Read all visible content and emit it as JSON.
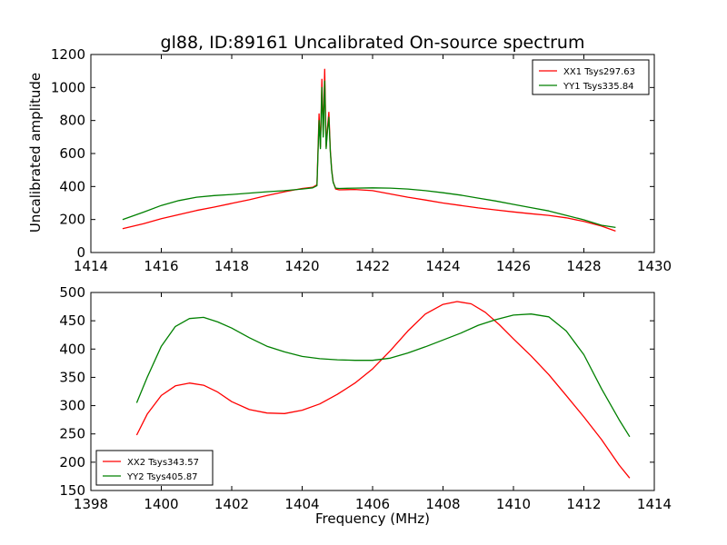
{
  "chart_data": [
    {
      "type": "line",
      "title": "gl88, ID:89161 Uncalibrated On-source spectrum",
      "xlabel": "",
      "ylabel": "Uncalibrated amplitude",
      "xlim": [
        1414,
        1430
      ],
      "ylim": [
        0,
        1200
      ],
      "xticks": [
        "1414",
        "1416",
        "1418",
        "1420",
        "1422",
        "1424",
        "1426",
        "1428",
        "1430"
      ],
      "yticks": [
        "0",
        "200",
        "400",
        "600",
        "800",
        "1000",
        "1200"
      ],
      "grid": false,
      "legend_position": "top-right",
      "series": [
        {
          "name": "XX1 Tsys297.63",
          "color": "#ff0000",
          "x": [
            1414.9,
            1415.5,
            1416,
            1416.5,
            1417,
            1417.5,
            1418,
            1418.5,
            1419,
            1419.5,
            1420,
            1420.3,
            1420.42,
            1420.48,
            1420.52,
            1420.56,
            1420.6,
            1420.64,
            1420.68,
            1420.72,
            1420.76,
            1420.8,
            1420.84,
            1420.88,
            1420.95,
            1421.05,
            1421.5,
            1422,
            1422.5,
            1423,
            1423.5,
            1424,
            1424.5,
            1425,
            1425.5,
            1426,
            1426.5,
            1427,
            1427.5,
            1428,
            1428.5,
            1428.9
          ],
          "y": [
            145,
            175,
            205,
            230,
            255,
            275,
            298,
            320,
            345,
            368,
            388,
            395,
            410,
            840,
            640,
            1050,
            720,
            1110,
            640,
            760,
            850,
            620,
            500,
            430,
            385,
            380,
            382,
            375,
            355,
            335,
            318,
            300,
            285,
            270,
            258,
            246,
            235,
            225,
            210,
            188,
            160,
            130
          ]
        },
        {
          "name": "YY1 Tsys335.84",
          "color": "#008000",
          "x": [
            1414.9,
            1415.5,
            1416,
            1416.5,
            1417,
            1417.5,
            1418,
            1418.5,
            1419,
            1419.5,
            1420,
            1420.3,
            1420.42,
            1420.48,
            1420.52,
            1420.56,
            1420.6,
            1420.64,
            1420.68,
            1420.72,
            1420.76,
            1420.8,
            1420.84,
            1420.88,
            1420.95,
            1421.05,
            1421.5,
            1422,
            1422.5,
            1423,
            1423.5,
            1424,
            1424.5,
            1425,
            1425.5,
            1426,
            1426.5,
            1427,
            1427.5,
            1428,
            1428.5,
            1428.9
          ],
          "y": [
            200,
            245,
            285,
            315,
            335,
            345,
            352,
            360,
            368,
            375,
            385,
            392,
            405,
            800,
            630,
            1000,
            700,
            1040,
            630,
            740,
            820,
            610,
            495,
            425,
            390,
            388,
            390,
            392,
            390,
            385,
            375,
            362,
            348,
            330,
            312,
            292,
            272,
            252,
            225,
            198,
            165,
            152
          ]
        }
      ]
    },
    {
      "type": "line",
      "title": "",
      "xlabel": "Frequency (MHz)",
      "ylabel": "",
      "xlim": [
        1398,
        1414
      ],
      "ylim": [
        150,
        500
      ],
      "xticks": [
        "1398",
        "1400",
        "1402",
        "1404",
        "1406",
        "1408",
        "1410",
        "1412",
        "1414"
      ],
      "yticks": [
        "150",
        "200",
        "250",
        "300",
        "350",
        "400",
        "450",
        "500"
      ],
      "grid": false,
      "legend_position": "bottom-left",
      "series": [
        {
          "name": "XX2 Tsys343.57",
          "color": "#ff0000",
          "x": [
            1399.3,
            1399.6,
            1400,
            1400.4,
            1400.8,
            1401.2,
            1401.6,
            1402,
            1402.5,
            1403,
            1403.5,
            1404,
            1404.5,
            1405,
            1405.5,
            1406,
            1406.5,
            1407,
            1407.5,
            1408,
            1408.4,
            1408.8,
            1409.2,
            1409.6,
            1410,
            1410.5,
            1411,
            1411.5,
            1412,
            1412.5,
            1413,
            1413.3
          ],
          "y": [
            248,
            285,
            318,
            335,
            340,
            336,
            324,
            307,
            293,
            287,
            286,
            292,
            303,
            320,
            340,
            365,
            397,
            432,
            462,
            479,
            484,
            480,
            465,
            443,
            418,
            388,
            355,
            318,
            280,
            240,
            195,
            172
          ]
        },
        {
          "name": "YY2 Tsys405.87",
          "color": "#008000",
          "x": [
            1399.3,
            1399.6,
            1400,
            1400.4,
            1400.8,
            1401.2,
            1401.6,
            1402,
            1402.5,
            1403,
            1403.5,
            1404,
            1404.5,
            1405,
            1405.5,
            1406,
            1406.5,
            1407,
            1407.5,
            1408,
            1408.5,
            1409,
            1409.5,
            1410,
            1410.5,
            1411,
            1411.5,
            1412,
            1412.5,
            1413,
            1413.3
          ],
          "y": [
            305,
            350,
            405,
            440,
            454,
            456,
            448,
            437,
            420,
            405,
            395,
            387,
            383,
            381,
            380,
            380,
            384,
            393,
            404,
            416,
            428,
            442,
            452,
            460,
            462,
            457,
            432,
            390,
            330,
            275,
            245
          ]
        }
      ]
    }
  ]
}
